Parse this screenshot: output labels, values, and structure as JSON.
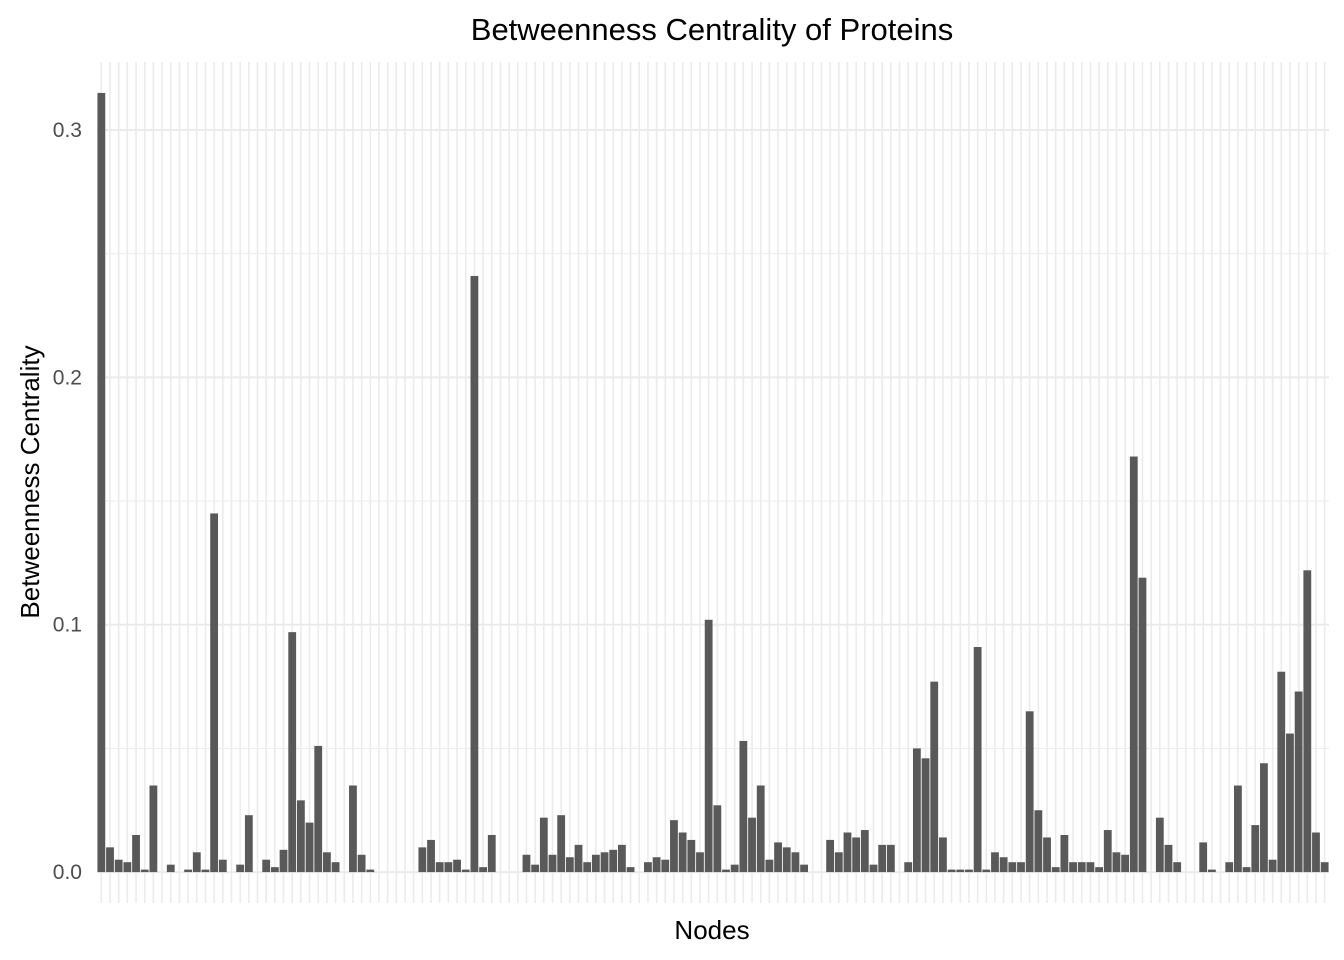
{
  "chart_data": {
    "type": "bar",
    "title": "Betweenness Centrality of Proteins",
    "xlabel": "Nodes",
    "ylabel": "Betweenness Centrality",
    "ylim": [
      -0.0125,
      0.3275
    ],
    "y_ticks": [
      {
        "value": 0.0,
        "label": "0.0"
      },
      {
        "value": 0.1,
        "label": "0.1"
      },
      {
        "value": 0.2,
        "label": "0.2"
      },
      {
        "value": 0.3,
        "label": "0.3"
      }
    ],
    "x_tick_labels_shown": false,
    "grid": true,
    "bar_color": "#595959",
    "grid_color": "#ebebeb",
    "values": [
      0.315,
      0.01,
      0.005,
      0.004,
      0.015,
      0.001,
      0.035,
      0,
      0.003,
      0,
      0.001,
      0.008,
      0.001,
      0.145,
      0.005,
      0,
      0.003,
      0.023,
      0,
      0.005,
      0.002,
      0.009,
      0.097,
      0.029,
      0.02,
      0.051,
      0.008,
      0.004,
      0,
      0.035,
      0.007,
      0.001,
      0,
      0,
      0,
      0,
      0,
      0.01,
      0.013,
      0.004,
      0.004,
      0.005,
      0.001,
      0.241,
      0.002,
      0.015,
      0,
      0,
      0,
      0.007,
      0.003,
      0.022,
      0.007,
      0.023,
      0.006,
      0.011,
      0.004,
      0.007,
      0.008,
      0.009,
      0.011,
      0.002,
      0,
      0.004,
      0.006,
      0.005,
      0.021,
      0.016,
      0.013,
      0.008,
      0.102,
      0.027,
      0.001,
      0.003,
      0.053,
      0.022,
      0.035,
      0.005,
      0.012,
      0.01,
      0.008,
      0.003,
      0,
      0,
      0.013,
      0.008,
      0.016,
      0.014,
      0.017,
      0.003,
      0.011,
      0.011,
      0,
      0.004,
      0.05,
      0.046,
      0.077,
      0.014,
      0.001,
      0.001,
      0.001,
      0.091,
      0.001,
      0.008,
      0.006,
      0.004,
      0.004,
      0.065,
      0.025,
      0.014,
      0.002,
      0.015,
      0.004,
      0.004,
      0.004,
      0.002,
      0.017,
      0.008,
      0.007,
      0.168,
      0.119,
      0,
      0.022,
      0.011,
      0.004,
      0,
      0,
      0.012,
      0.001,
      0,
      0.004,
      0.035,
      0.002,
      0.019,
      0.044,
      0.005,
      0.081,
      0.056,
      0.073,
      0.122,
      0.016,
      0.004
    ]
  }
}
